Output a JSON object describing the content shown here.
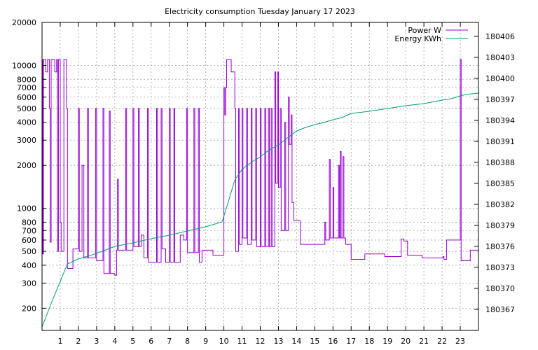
{
  "chart_data": {
    "type": "line",
    "title": "Electricity consumption Tuesday January 17 2023",
    "xlim": [
      0,
      24
    ],
    "x_ticks": [
      {
        "v": 1,
        "label": "1"
      },
      {
        "v": 2,
        "label": "2"
      },
      {
        "v": 3,
        "label": "3"
      },
      {
        "v": 4,
        "label": "4"
      },
      {
        "v": 5,
        "label": "5"
      },
      {
        "v": 6,
        "label": "6"
      },
      {
        "v": 7,
        "label": "7"
      },
      {
        "v": 8,
        "label": "8"
      },
      {
        "v": 9,
        "label": "9"
      },
      {
        "v": 10,
        "label": "10"
      },
      {
        "v": 11,
        "label": "11"
      },
      {
        "v": 12,
        "label": "12"
      },
      {
        "v": 13,
        "label": "13"
      },
      {
        "v": 14,
        "label": "14"
      },
      {
        "v": 15,
        "label": "15"
      },
      {
        "v": 16,
        "label": "16"
      },
      {
        "v": 17,
        "label": "17"
      },
      {
        "v": 18,
        "label": "18"
      },
      {
        "v": 19,
        "label": "19"
      },
      {
        "v": 20,
        "label": "20"
      },
      {
        "v": 21,
        "label": "21"
      },
      {
        "v": 22,
        "label": "22"
      },
      {
        "v": 23,
        "label": "23"
      }
    ],
    "y_left": {
      "scale": "log",
      "range": [
        140,
        20000
      ],
      "ticks": [
        {
          "v": 200,
          "label": "200"
        },
        {
          "v": 300,
          "label": "300"
        },
        {
          "v": 400,
          "label": "400"
        },
        {
          "v": 500,
          "label": "500"
        },
        {
          "v": 600,
          "label": "600"
        },
        {
          "v": 700,
          "label": "700"
        },
        {
          "v": 800,
          "label": "800"
        },
        {
          "v": 1000,
          "label": "1000"
        },
        {
          "v": 2000,
          "label": "2000"
        },
        {
          "v": 3000,
          "label": "3000"
        },
        {
          "v": 4000,
          "label": "4000"
        },
        {
          "v": 5000,
          "label": "5000"
        },
        {
          "v": 6000,
          "label": "6000"
        },
        {
          "v": 7000,
          "label": "7000"
        },
        {
          "v": 8000,
          "label": "8000"
        },
        {
          "v": 10000,
          "label": "10000"
        },
        {
          "v": 20000,
          "label": "20000"
        }
      ]
    },
    "y_right": {
      "scale": "linear",
      "range": [
        180364,
        180408
      ],
      "ticks": [
        {
          "v": 180367,
          "label": "180367"
        },
        {
          "v": 180370,
          "label": "180370"
        },
        {
          "v": 180373,
          "label": "180373"
        },
        {
          "v": 180376,
          "label": "180376"
        },
        {
          "v": 180379,
          "label": "180379"
        },
        {
          "v": 180382,
          "label": "180382"
        },
        {
          "v": 180385,
          "label": "180385"
        },
        {
          "v": 180388,
          "label": "180388"
        },
        {
          "v": 180391,
          "label": "180391"
        },
        {
          "v": 180394,
          "label": "180394"
        },
        {
          "v": 180397,
          "label": "180397"
        },
        {
          "v": 180400,
          "label": "180400"
        },
        {
          "v": 180403,
          "label": "180403"
        },
        {
          "v": 180406,
          "label": "180406"
        }
      ]
    },
    "grid": true,
    "legend_position": "top-right",
    "series": [
      {
        "name": "Power W",
        "color": "#9400d3",
        "axis": "left",
        "step": true,
        "points": [
          [
            0,
            11000
          ],
          [
            0.04,
            480
          ],
          [
            0.08,
            11000
          ],
          [
            0.2,
            9000
          ],
          [
            0.3,
            11000
          ],
          [
            0.4,
            5000
          ],
          [
            0.45,
            580
          ],
          [
            0.5,
            11000
          ],
          [
            0.7,
            9000
          ],
          [
            0.8,
            11000
          ],
          [
            0.85,
            500
          ],
          [
            0.9,
            11000
          ],
          [
            1.0,
            800
          ],
          [
            1.05,
            500
          ],
          [
            1.2,
            11000
          ],
          [
            1.35,
            5000
          ],
          [
            1.4,
            380
          ],
          [
            1.55,
            380
          ],
          [
            1.7,
            520
          ],
          [
            1.95,
            520
          ],
          [
            2.0,
            5000
          ],
          [
            2.05,
            500
          ],
          [
            2.2,
            2000
          ],
          [
            2.3,
            450
          ],
          [
            2.5,
            5000
          ],
          [
            2.55,
            450
          ],
          [
            2.95,
            5000
          ],
          [
            3.0,
            430
          ],
          [
            3.2,
            430
          ],
          [
            3.35,
            5000
          ],
          [
            3.4,
            350
          ],
          [
            3.7,
            4800
          ],
          [
            3.75,
            350
          ],
          [
            4.0,
            340
          ],
          [
            4.1,
            510
          ],
          [
            4.15,
            1600
          ],
          [
            4.2,
            510
          ],
          [
            4.6,
            5000
          ],
          [
            4.65,
            510
          ],
          [
            5.0,
            5000
          ],
          [
            5.05,
            540
          ],
          [
            5.3,
            5000
          ],
          [
            5.35,
            540
          ],
          [
            5.45,
            650
          ],
          [
            5.6,
            450
          ],
          [
            5.8,
            5000
          ],
          [
            5.85,
            420
          ],
          [
            6.3,
            5000
          ],
          [
            6.35,
            420
          ],
          [
            6.55,
            5000
          ],
          [
            6.6,
            520
          ],
          [
            6.8,
            420
          ],
          [
            7.0,
            5000
          ],
          [
            7.05,
            420
          ],
          [
            7.25,
            5000
          ],
          [
            7.3,
            420
          ],
          [
            7.6,
            650
          ],
          [
            7.8,
            600
          ],
          [
            7.95,
            5000
          ],
          [
            8.0,
            490
          ],
          [
            8.35,
            5000
          ],
          [
            8.4,
            490
          ],
          [
            8.6,
            5000
          ],
          [
            8.65,
            420
          ],
          [
            8.8,
            510
          ],
          [
            9.1,
            510
          ],
          [
            9.4,
            470
          ],
          [
            9.9,
            470
          ],
          [
            10.0,
            7000
          ],
          [
            10.05,
            4500
          ],
          [
            10.1,
            7000
          ],
          [
            10.15,
            11000
          ],
          [
            10.4,
            9000
          ],
          [
            10.6,
            5000
          ],
          [
            10.65,
            500
          ],
          [
            10.8,
            5000
          ],
          [
            10.85,
            560
          ],
          [
            11.0,
            5000
          ],
          [
            11.05,
            620
          ],
          [
            11.25,
            5000
          ],
          [
            11.3,
            560
          ],
          [
            11.5,
            5000
          ],
          [
            11.55,
            600
          ],
          [
            11.75,
            5000
          ],
          [
            11.8,
            540
          ],
          [
            12.0,
            5000
          ],
          [
            12.05,
            540
          ],
          [
            12.25,
            5000
          ],
          [
            12.3,
            540
          ],
          [
            12.45,
            5000
          ],
          [
            12.5,
            540
          ],
          [
            12.6,
            5000
          ],
          [
            12.65,
            540
          ],
          [
            12.8,
            9000
          ],
          [
            12.85,
            1500
          ],
          [
            12.95,
            9000
          ],
          [
            13.0,
            1400
          ],
          [
            13.1,
            5000
          ],
          [
            13.15,
            700
          ],
          [
            13.35,
            4000
          ],
          [
            13.4,
            700
          ],
          [
            13.55,
            6000
          ],
          [
            13.6,
            2800
          ],
          [
            13.7,
            4500
          ],
          [
            13.75,
            1100
          ],
          [
            13.85,
            820
          ],
          [
            14.15,
            820
          ],
          [
            14.2,
            560
          ],
          [
            14.5,
            560
          ],
          [
            15.0,
            560
          ],
          [
            15.5,
            560
          ],
          [
            15.55,
            800
          ],
          [
            15.6,
            600
          ],
          [
            15.8,
            2200
          ],
          [
            15.85,
            620
          ],
          [
            16.0,
            1400
          ],
          [
            16.05,
            620
          ],
          [
            16.3,
            2000
          ],
          [
            16.35,
            620
          ],
          [
            16.4,
            2500
          ],
          [
            16.45,
            620
          ],
          [
            16.55,
            2300
          ],
          [
            16.6,
            620
          ],
          [
            16.7,
            560
          ],
          [
            16.9,
            560
          ],
          [
            17.0,
            440
          ],
          [
            17.7,
            440
          ],
          [
            17.75,
            480
          ],
          [
            18.8,
            480
          ],
          [
            18.85,
            460
          ],
          [
            19.7,
            460
          ],
          [
            19.75,
            610
          ],
          [
            19.9,
            590
          ],
          [
            20.0,
            590
          ],
          [
            20.1,
            470
          ],
          [
            20.8,
            470
          ],
          [
            20.9,
            450
          ],
          [
            22.0,
            450
          ],
          [
            22.05,
            460
          ],
          [
            22.1,
            440
          ],
          [
            22.2,
            440
          ],
          [
            22.25,
            600
          ],
          [
            22.9,
            600
          ],
          [
            23.0,
            11000
          ],
          [
            23.05,
            430
          ],
          [
            23.5,
            430
          ],
          [
            23.55,
            510
          ],
          [
            24.0,
            510
          ]
        ]
      },
      {
        "name": "Energy KWh",
        "color": "#009e73",
        "axis": "right",
        "step": false,
        "points": [
          [
            0,
            180364.5
          ],
          [
            0.3,
            180366.5
          ],
          [
            0.6,
            180368.5
          ],
          [
            1.0,
            180371.0
          ],
          [
            1.4,
            180373.5
          ],
          [
            2.0,
            180374.2
          ],
          [
            3.0,
            180375.0
          ],
          [
            4.0,
            180376.0
          ],
          [
            5.0,
            180376.5
          ],
          [
            6.0,
            180377.1
          ],
          [
            7.0,
            180377.6
          ],
          [
            8.0,
            180378.2
          ],
          [
            9.0,
            180378.8
          ],
          [
            9.9,
            180379.5
          ],
          [
            10.2,
            180382.0
          ],
          [
            10.6,
            180385.5
          ],
          [
            11.0,
            180387.0
          ],
          [
            11.5,
            180388.0
          ],
          [
            12.0,
            180388.8
          ],
          [
            12.5,
            180389.8
          ],
          [
            13.0,
            180390.5
          ],
          [
            13.5,
            180391.5
          ],
          [
            14.0,
            180392.5
          ],
          [
            14.5,
            180393.0
          ],
          [
            15.0,
            180393.4
          ],
          [
            15.5,
            180393.7
          ],
          [
            16.0,
            180394.1
          ],
          [
            16.5,
            180394.4
          ],
          [
            17.0,
            180395.0
          ],
          [
            18.0,
            180395.3
          ],
          [
            19.0,
            180395.7
          ],
          [
            20.0,
            180396.1
          ],
          [
            21.0,
            180396.4
          ],
          [
            22.0,
            180396.9
          ],
          [
            22.5,
            180397.1
          ],
          [
            23.0,
            180397.5
          ],
          [
            23.3,
            180397.7
          ],
          [
            24.0,
            180397.9
          ]
        ]
      }
    ]
  }
}
